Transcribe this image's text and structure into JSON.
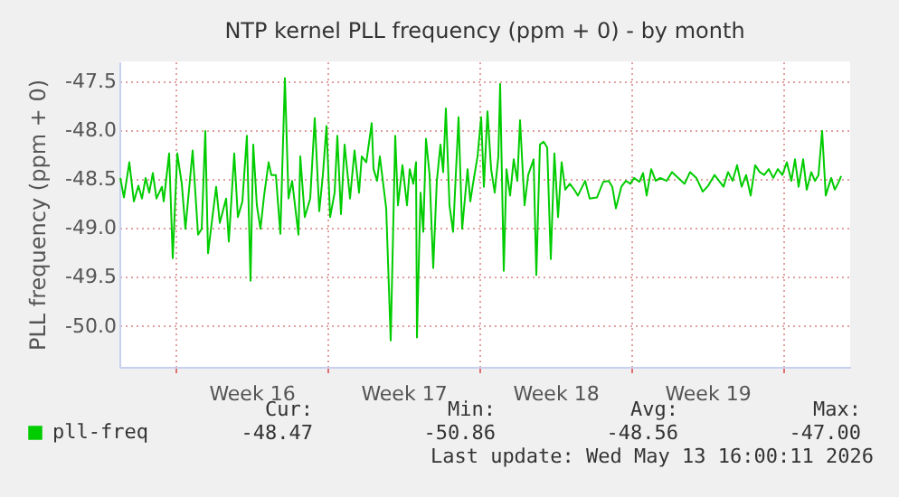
{
  "chart_data": {
    "type": "line",
    "title": "NTP kernel PLL frequency (ppm + 0) - by month",
    "ylabel": "PLL frequency (ppm + 0)",
    "x": [
      "2026-04-10T11:00",
      "2026-04-10T15:00",
      "2026-04-10T21:00",
      "2026-04-11T02:00",
      "2026-04-11T07:00",
      "2026-04-11T11:00",
      "2026-04-11T15:00",
      "2026-04-11T19:00",
      "2026-04-11T23:00",
      "2026-04-12T03:00",
      "2026-04-12T09:00",
      "2026-04-12T11:00",
      "2026-04-12T17:00",
      "2026-04-12T21:00",
      "2026-04-13T02:00",
      "2026-04-13T07:00",
      "2026-04-13T11:00",
      "2026-04-13T19:00",
      "2026-04-14T01:00",
      "2026-04-14T05:00",
      "2026-04-14T09:00",
      "2026-04-14T12:00",
      "2026-04-14T21:00",
      "2026-04-15T01:00",
      "2026-04-15T08:00",
      "2026-04-15T11:00",
      "2026-04-15T17:00",
      "2026-04-15T21:00",
      "2026-04-16T02:00",
      "2026-04-16T07:00",
      "2026-04-16T11:00",
      "2026-04-16T14:00",
      "2026-04-16T18:00",
      "2026-04-16T22:00",
      "2026-04-17T02:00",
      "2026-04-17T07:00",
      "2026-04-17T10:00",
      "2026-04-17T15:00",
      "2026-04-17T20:00",
      "2026-04-18T01:00",
      "2026-04-18T05:00",
      "2026-04-18T09:00",
      "2026-04-18T16:00",
      "2026-04-18T18:00",
      "2026-04-18T23:00",
      "2026-04-19T05:00",
      "2026-04-19T10:00",
      "2026-04-19T15:00",
      "2026-04-19T19:00",
      "2026-04-19T23:00",
      "2026-04-20T03:00",
      "2026-04-20T08:00",
      "2026-04-20T11:00",
      "2026-04-20T15:00",
      "2026-04-20T19:00",
      "2026-04-21T01:00",
      "2026-04-21T06:00",
      "2026-04-21T11:00",
      "2026-04-21T14:00",
      "2026-04-21T19:00",
      "2026-04-22T01:00",
      "2026-04-22T03:00",
      "2026-04-22T07:00",
      "2026-04-22T10:00",
      "2026-04-22T17:00",
      "2026-04-22T22:00",
      "2026-04-23T03:00",
      "2026-04-23T06:00",
      "2026-04-23T11:00",
      "2026-04-23T16:00",
      "2026-04-23T19:00",
      "2026-04-23T23:00",
      "2026-04-24T02:00",
      "2026-04-24T03:00",
      "2026-04-24T07:00",
      "2026-04-24T10:00",
      "2026-04-24T13:00",
      "2026-04-24T17:00",
      "2026-04-24T21:00",
      "2026-04-25T01:00",
      "2026-04-25T05:00",
      "2026-04-25T08:00",
      "2026-04-25T11:00",
      "2026-04-25T15:00",
      "2026-04-25T19:00",
      "2026-04-26T01:00",
      "2026-04-26T05:00",
      "2026-04-26T11:00",
      "2026-04-26T14:00",
      "2026-04-26T17:00",
      "2026-04-26T22:00",
      "2026-04-27T02:00",
      "2026-04-27T05:00",
      "2026-04-27T09:00",
      "2026-04-27T13:00",
      "2026-04-27T17:00",
      "2026-04-27T21:00",
      "2026-04-27T23:00",
      "2026-04-28T03:00",
      "2026-04-28T06:00",
      "2026-04-28T10:00",
      "2026-04-28T14:00",
      "2026-04-28T18:00",
      "2026-04-28T21:00",
      "2026-04-29T02:00",
      "2026-04-29T06:00",
      "2026-04-29T12:00",
      "2026-04-29T15:00",
      "2026-04-29T19:00",
      "2026-04-29T23:00",
      "2026-04-30T03:00",
      "2026-04-30T07:00",
      "2026-04-30T11:00",
      "2026-04-30T15:00",
      "2026-04-30T19:00",
      "2026-04-30T23:00",
      "2026-05-01T04:00",
      "2026-05-01T09:00",
      "2026-05-01T13:00",
      "2026-05-01T21:00",
      "2026-05-02T02:00",
      "2026-05-02T10:00",
      "2026-05-02T17:00",
      "2026-05-02T23:00",
      "2026-05-03T03:00",
      "2026-05-03T07:00",
      "2026-05-03T13:00",
      "2026-05-03T18:00",
      "2026-05-03T23:00",
      "2026-05-04T03:00",
      "2026-05-04T09:00",
      "2026-05-04T13:00",
      "2026-05-04T17:00",
      "2026-05-04T22:00",
      "2026-05-05T03:00",
      "2026-05-05T08:00",
      "2026-05-05T15:00",
      "2026-05-05T21:00",
      "2026-05-06T04:00",
      "2026-05-06T11:00",
      "2026-05-06T17:00",
      "2026-05-07T00:00",
      "2026-05-07T07:00",
      "2026-05-07T13:00",
      "2026-05-07T20:00",
      "2026-05-08T01:00",
      "2026-05-08T06:00",
      "2026-05-08T11:00",
      "2026-05-08T16:00",
      "2026-05-08T21:00",
      "2026-05-09T02:00",
      "2026-05-09T07:00",
      "2026-05-09T12:00",
      "2026-05-09T17:00",
      "2026-05-09T22:00",
      "2026-05-10T03:00",
      "2026-05-10T08:00",
      "2026-05-10T13:00",
      "2026-05-10T18:00",
      "2026-05-10T23:00",
      "2026-05-11T04:00",
      "2026-05-11T09:00",
      "2026-05-11T13:00",
      "2026-05-11T17:00",
      "2026-05-11T22:00",
      "2026-05-12T02:00",
      "2026-05-12T07:00",
      "2026-05-12T11:00",
      "2026-05-12T15:00",
      "2026-05-12T19:00",
      "2026-05-12T23:00",
      "2026-05-13T05:00",
      "2026-05-13T09:00",
      "2026-05-13T14:00",
      "2026-05-13T16:00"
    ],
    "series": [
      {
        "name": "pll-freq",
        "color": "#00cc00",
        "values": [
          -48.49,
          -48.69,
          -48.33,
          -48.73,
          -48.57,
          -48.7,
          -48.49,
          -48.64,
          -48.44,
          -48.7,
          -48.58,
          -48.73,
          -48.24,
          -49.31,
          -48.24,
          -48.55,
          -49.01,
          -48.21,
          -49.07,
          -49.01,
          -48.01,
          -49.26,
          -48.58,
          -48.95,
          -48.7,
          -49.14,
          -48.24,
          -48.89,
          -48.73,
          -48.06,
          -49.54,
          -48.15,
          -48.77,
          -49.01,
          -48.67,
          -48.33,
          -48.46,
          -48.46,
          -49.06,
          -47.47,
          -48.7,
          -48.52,
          -49.07,
          -48.27,
          -48.89,
          -48.7,
          -47.88,
          -48.83,
          -48.46,
          -47.96,
          -48.89,
          -48.64,
          -48.06,
          -48.86,
          -48.15,
          -48.7,
          -48.21,
          -48.64,
          -48.27,
          -48.33,
          -47.93,
          -48.4,
          -48.52,
          -48.27,
          -48.8,
          -50.15,
          -48.06,
          -48.77,
          -48.36,
          -48.77,
          -48.4,
          -48.55,
          -48.33,
          -50.12,
          -48.64,
          -49.04,
          -48.09,
          -48.46,
          -49.41,
          -48.52,
          -48.15,
          -48.43,
          -47.78,
          -48.77,
          -49.04,
          -47.87,
          -49.01,
          -48.4,
          -48.73,
          -48.55,
          -48.27,
          -47.87,
          -48.58,
          -47.81,
          -48.4,
          -48.64,
          -48.27,
          -47.53,
          -49.44,
          -48.4,
          -48.67,
          -48.3,
          -48.52,
          -47.9,
          -48.77,
          -48.46,
          -48.3,
          -49.48,
          -48.15,
          -48.12,
          -48.18,
          -49.32,
          -48.24,
          -48.89,
          -48.33,
          -48.61,
          -48.55,
          -48.61,
          -48.67,
          -48.52,
          -48.7,
          -48.69,
          -48.53,
          -48.52,
          -48.58,
          -48.8,
          -48.58,
          -48.52,
          -48.55,
          -48.49,
          -48.53,
          -48.44,
          -48.67,
          -48.4,
          -48.52,
          -48.49,
          -48.52,
          -48.43,
          -48.49,
          -48.55,
          -48.43,
          -48.49,
          -48.63,
          -48.57,
          -48.46,
          -48.52,
          -48.58,
          -48.43,
          -48.52,
          -48.36,
          -48.58,
          -48.46,
          -48.67,
          -48.36,
          -48.43,
          -48.46,
          -48.4,
          -48.49,
          -48.4,
          -48.46,
          -48.33,
          -48.52,
          -48.3,
          -48.58,
          -48.3,
          -48.61,
          -48.43,
          -48.52,
          -48.46,
          -48.01,
          -48.67,
          -48.49,
          -48.61,
          -48.52,
          -48.47
        ]
      }
    ],
    "xlim": [
      "2026-04-10T10:00",
      "2026-05-14T02:00"
    ],
    "xticks": [
      {
        "value": "2026-04-13T00:00",
        "label": null
      },
      {
        "value": "2026-04-16T12:00",
        "label": "Week 16"
      },
      {
        "value": "2026-04-20T00:00",
        "label": null
      },
      {
        "value": "2026-04-23T12:00",
        "label": "Week 17"
      },
      {
        "value": "2026-04-27T00:00",
        "label": null
      },
      {
        "value": "2026-04-30T12:00",
        "label": "Week 18"
      },
      {
        "value": "2026-05-04T00:00",
        "label": null
      },
      {
        "value": "2026-05-07T12:00",
        "label": "Week 19"
      },
      {
        "value": "2026-05-11T00:00",
        "label": null
      }
    ],
    "ylim": [
      -50.42,
      -47.3
    ],
    "yticks": [
      {
        "value": -47.5,
        "label": "-47.5"
      },
      {
        "value": -48.0,
        "label": "-48.0"
      },
      {
        "value": -48.5,
        "label": "-48.5"
      },
      {
        "value": -49.0,
        "label": "-49.0"
      },
      {
        "value": -49.5,
        "label": "-49.5"
      },
      {
        "value": -50.0,
        "label": "-50.0"
      }
    ],
    "grid": true,
    "legend": "bottom left",
    "line_style": "solid",
    "annotations": [
      "Cur:",
      "Min:",
      "Avg:",
      "Max:",
      "-48.47",
      "-50.86",
      "-48.56",
      "-47.00",
      "Last update: Wed May 13 16:00:11 2026"
    ]
  }
}
